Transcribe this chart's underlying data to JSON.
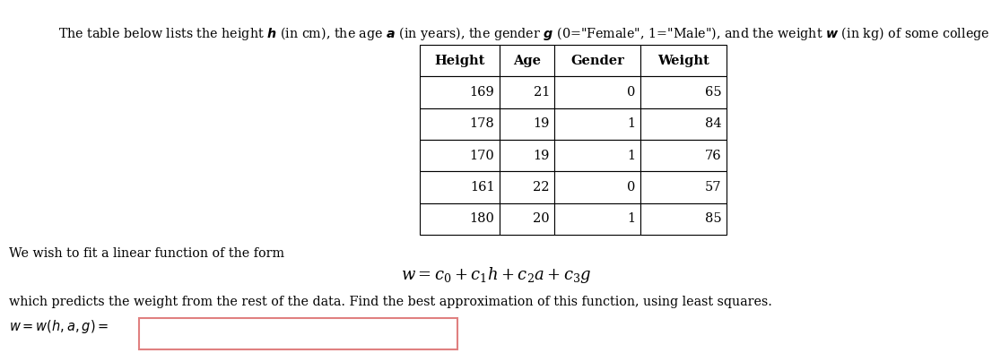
{
  "title_plain": "The table below lists the height ",
  "table_headers": [
    "Height",
    "Age",
    "Gender",
    "Weight"
  ],
  "table_data": [
    [
      169,
      21,
      0,
      65
    ],
    [
      178,
      19,
      1,
      84
    ],
    [
      170,
      19,
      1,
      76
    ],
    [
      161,
      22,
      0,
      57
    ],
    [
      180,
      20,
      1,
      85
    ]
  ],
  "text_line1": "We wish to fit a linear function of the form",
  "formula": "$w = c_0 + c_1h + c_2a + c_3g$",
  "text_line2": "which predicts the weight from the rest of the data. Find the best approximation of this function, using least squares.",
  "answer_label": "$w = w(h, a, g) =$",
  "bg_color": "#ffffff",
  "box_border_color": "#e08080"
}
